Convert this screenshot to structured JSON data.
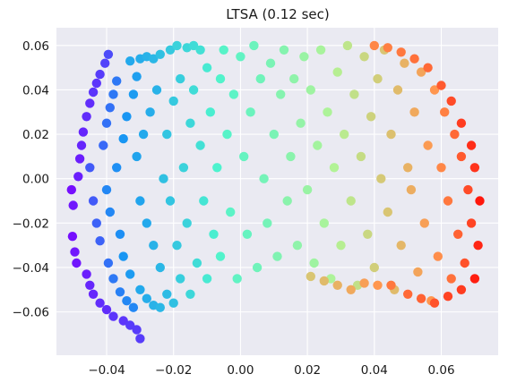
{
  "chart_data": {
    "type": "scatter",
    "title": "LTSA (0.12 sec)",
    "xlabel": "",
    "ylabel": "",
    "xlim": [
      -0.055,
      0.077
    ],
    "ylim": [
      -0.0795,
      0.068
    ],
    "xticks": [
      -0.04,
      -0.02,
      0.0,
      0.02,
      0.04,
      0.06
    ],
    "yticks": [
      -0.06,
      -0.04,
      -0.02,
      0.0,
      0.02,
      0.04,
      0.06
    ],
    "xtick_labels": [
      "−0.04",
      "−0.02",
      "0.00",
      "0.02",
      "0.04",
      "0.06"
    ],
    "ytick_labels": [
      "−0.06",
      "−0.04",
      "−0.02",
      "0.00",
      "0.02",
      "0.04",
      "0.06"
    ],
    "grid": true,
    "background": "#eaeaf2",
    "grid_color": "#ffffff",
    "colormap": "rainbow",
    "color_stops": [
      "#8000ff",
      "#1996f3",
      "#4df3ce",
      "#b2f396",
      "#ff964f",
      "#ff0000"
    ],
    "points": [
      {
        "x": -0.0505,
        "y": -0.005,
        "c": 0.02
      },
      {
        "x": -0.05,
        "y": -0.012,
        "c": 0.03
      },
      {
        "x": -0.0502,
        "y": -0.026,
        "c": 0.02
      },
      {
        "x": -0.0495,
        "y": -0.033,
        "c": 0.03
      },
      {
        "x": -0.049,
        "y": -0.038,
        "c": 0.03
      },
      {
        "x": -0.0485,
        "y": 0.001,
        "c": 0.04
      },
      {
        "x": -0.048,
        "y": 0.009,
        "c": 0.04
      },
      {
        "x": -0.0475,
        "y": 0.015,
        "c": 0.05
      },
      {
        "x": -0.047,
        "y": 0.021,
        "c": 0.05
      },
      {
        "x": -0.046,
        "y": 0.028,
        "c": 0.06
      },
      {
        "x": -0.045,
        "y": 0.034,
        "c": 0.06
      },
      {
        "x": -0.044,
        "y": 0.039,
        "c": 0.07
      },
      {
        "x": -0.043,
        "y": 0.043,
        "c": 0.07
      },
      {
        "x": -0.042,
        "y": 0.047,
        "c": 0.08
      },
      {
        "x": -0.0405,
        "y": 0.052,
        "c": 0.09
      },
      {
        "x": -0.0395,
        "y": 0.056,
        "c": 0.1
      },
      {
        "x": -0.046,
        "y": -0.043,
        "c": 0.04
      },
      {
        "x": -0.045,
        "y": -0.048,
        "c": 0.05
      },
      {
        "x": -0.044,
        "y": -0.052,
        "c": 0.05
      },
      {
        "x": -0.042,
        "y": -0.056,
        "c": 0.06
      },
      {
        "x": -0.04,
        "y": -0.059,
        "c": 0.06
      },
      {
        "x": -0.038,
        "y": -0.062,
        "c": 0.07
      },
      {
        "x": -0.035,
        "y": -0.064,
        "c": 0.07
      },
      {
        "x": -0.033,
        "y": -0.066,
        "c": 0.08
      },
      {
        "x": -0.031,
        "y": -0.068,
        "c": 0.08
      },
      {
        "x": -0.03,
        "y": -0.072,
        "c": 0.08
      },
      {
        "x": -0.045,
        "y": 0.005,
        "c": 0.12
      },
      {
        "x": -0.044,
        "y": -0.01,
        "c": 0.12
      },
      {
        "x": -0.043,
        "y": -0.02,
        "c": 0.13
      },
      {
        "x": -0.042,
        "y": -0.028,
        "c": 0.13
      },
      {
        "x": -0.041,
        "y": 0.015,
        "c": 0.14
      },
      {
        "x": -0.04,
        "y": 0.025,
        "c": 0.15
      },
      {
        "x": -0.039,
        "y": 0.032,
        "c": 0.15
      },
      {
        "x": -0.038,
        "y": 0.038,
        "c": 0.16
      },
      {
        "x": -0.037,
        "y": 0.044,
        "c": 0.16
      },
      {
        "x": -0.0395,
        "y": -0.038,
        "c": 0.15
      },
      {
        "x": -0.038,
        "y": -0.045,
        "c": 0.16
      },
      {
        "x": -0.036,
        "y": -0.051,
        "c": 0.17
      },
      {
        "x": -0.034,
        "y": -0.055,
        "c": 0.18
      },
      {
        "x": -0.032,
        "y": -0.058,
        "c": 0.18
      },
      {
        "x": -0.04,
        "y": -0.005,
        "c": 0.18
      },
      {
        "x": -0.039,
        "y": -0.015,
        "c": 0.18
      },
      {
        "x": -0.037,
        "y": 0.005,
        "c": 0.19
      },
      {
        "x": -0.036,
        "y": -0.025,
        "c": 0.19
      },
      {
        "x": -0.035,
        "y": 0.018,
        "c": 0.2
      },
      {
        "x": -0.034,
        "y": 0.028,
        "c": 0.2
      },
      {
        "x": -0.035,
        "y": -0.035,
        "c": 0.2
      },
      {
        "x": -0.033,
        "y": -0.043,
        "c": 0.21
      },
      {
        "x": -0.032,
        "y": 0.038,
        "c": 0.21
      },
      {
        "x": -0.031,
        "y": 0.046,
        "c": 0.22
      },
      {
        "x": -0.033,
        "y": 0.053,
        "c": 0.24
      },
      {
        "x": -0.03,
        "y": 0.054,
        "c": 0.25
      },
      {
        "x": -0.028,
        "y": 0.055,
        "c": 0.26
      },
      {
        "x": -0.026,
        "y": 0.054,
        "c": 0.27
      },
      {
        "x": -0.024,
        "y": 0.056,
        "c": 0.29
      },
      {
        "x": -0.021,
        "y": 0.058,
        "c": 0.31
      },
      {
        "x": -0.019,
        "y": 0.06,
        "c": 0.33
      },
      {
        "x": -0.016,
        "y": 0.059,
        "c": 0.34
      },
      {
        "x": -0.014,
        "y": 0.06,
        "c": 0.35
      },
      {
        "x": -0.012,
        "y": 0.058,
        "c": 0.36
      },
      {
        "x": -0.031,
        "y": 0.01,
        "c": 0.23
      },
      {
        "x": -0.03,
        "y": -0.01,
        "c": 0.23
      },
      {
        "x": -0.029,
        "y": 0.02,
        "c": 0.24
      },
      {
        "x": -0.028,
        "y": -0.02,
        "c": 0.24
      },
      {
        "x": -0.027,
        "y": 0.03,
        "c": 0.25
      },
      {
        "x": -0.026,
        "y": -0.03,
        "c": 0.26
      },
      {
        "x": -0.025,
        "y": 0.04,
        "c": 0.26
      },
      {
        "x": -0.024,
        "y": -0.04,
        "c": 0.27
      },
      {
        "x": -0.03,
        "y": -0.05,
        "c": 0.24
      },
      {
        "x": -0.028,
        "y": -0.054,
        "c": 0.25
      },
      {
        "x": -0.026,
        "y": -0.057,
        "c": 0.26
      },
      {
        "x": -0.024,
        "y": -0.058,
        "c": 0.27
      },
      {
        "x": -0.022,
        "y": -0.052,
        "c": 0.28
      },
      {
        "x": -0.02,
        "y": -0.056,
        "c": 0.29
      },
      {
        "x": -0.023,
        "y": 0.0,
        "c": 0.29
      },
      {
        "x": -0.022,
        "y": 0.02,
        "c": 0.3
      },
      {
        "x": -0.021,
        "y": -0.01,
        "c": 0.3
      },
      {
        "x": -0.02,
        "y": 0.035,
        "c": 0.31
      },
      {
        "x": -0.019,
        "y": -0.03,
        "c": 0.31
      },
      {
        "x": -0.018,
        "y": 0.045,
        "c": 0.32
      },
      {
        "x": -0.018,
        "y": -0.045,
        "c": 0.32
      },
      {
        "x": -0.017,
        "y": 0.005,
        "c": 0.33
      },
      {
        "x": -0.016,
        "y": -0.02,
        "c": 0.33
      },
      {
        "x": -0.015,
        "y": 0.025,
        "c": 0.34
      },
      {
        "x": -0.015,
        "y": -0.052,
        "c": 0.34
      },
      {
        "x": -0.014,
        "y": 0.04,
        "c": 0.35
      },
      {
        "x": -0.013,
        "y": -0.038,
        "c": 0.35
      },
      {
        "x": -0.012,
        "y": 0.015,
        "c": 0.36
      },
      {
        "x": -0.011,
        "y": -0.01,
        "c": 0.37
      },
      {
        "x": -0.01,
        "y": 0.05,
        "c": 0.38
      },
      {
        "x": -0.01,
        "y": -0.045,
        "c": 0.38
      },
      {
        "x": -0.009,
        "y": 0.03,
        "c": 0.39
      },
      {
        "x": -0.008,
        "y": -0.025,
        "c": 0.39
      },
      {
        "x": -0.007,
        "y": 0.005,
        "c": 0.4
      },
      {
        "x": -0.006,
        "y": 0.045,
        "c": 0.41
      },
      {
        "x": -0.006,
        "y": -0.035,
        "c": 0.41
      },
      {
        "x": -0.005,
        "y": 0.058,
        "c": 0.42
      },
      {
        "x": -0.004,
        "y": 0.02,
        "c": 0.42
      },
      {
        "x": -0.003,
        "y": -0.015,
        "c": 0.43
      },
      {
        "x": -0.002,
        "y": 0.038,
        "c": 0.43
      },
      {
        "x": -0.001,
        "y": -0.045,
        "c": 0.44
      },
      {
        "x": 0.0,
        "y": 0.055,
        "c": 0.44
      },
      {
        "x": 0.001,
        "y": 0.01,
        "c": 0.45
      },
      {
        "x": 0.002,
        "y": -0.025,
        "c": 0.45
      },
      {
        "x": 0.003,
        "y": 0.03,
        "c": 0.46
      },
      {
        "x": 0.004,
        "y": 0.06,
        "c": 0.46
      },
      {
        "x": 0.005,
        "y": -0.04,
        "c": 0.47
      },
      {
        "x": 0.006,
        "y": 0.045,
        "c": 0.47
      },
      {
        "x": 0.007,
        "y": 0.0,
        "c": 0.48
      },
      {
        "x": 0.008,
        "y": -0.02,
        "c": 0.48
      },
      {
        "x": 0.009,
        "y": 0.052,
        "c": 0.49
      },
      {
        "x": 0.01,
        "y": 0.02,
        "c": 0.49
      },
      {
        "x": 0.011,
        "y": -0.035,
        "c": 0.5
      },
      {
        "x": 0.012,
        "y": 0.038,
        "c": 0.51
      },
      {
        "x": 0.013,
        "y": 0.058,
        "c": 0.51
      },
      {
        "x": 0.014,
        "y": -0.01,
        "c": 0.52
      },
      {
        "x": 0.015,
        "y": 0.01,
        "c": 0.52
      },
      {
        "x": 0.016,
        "y": 0.045,
        "c": 0.53
      },
      {
        "x": 0.017,
        "y": -0.03,
        "c": 0.53
      },
      {
        "x": 0.018,
        "y": 0.025,
        "c": 0.54
      },
      {
        "x": 0.019,
        "y": 0.055,
        "c": 0.55
      },
      {
        "x": 0.02,
        "y": -0.005,
        "c": 0.55
      },
      {
        "x": 0.021,
        "y": 0.04,
        "c": 0.56
      },
      {
        "x": 0.022,
        "y": -0.038,
        "c": 0.56
      },
      {
        "x": 0.023,
        "y": 0.015,
        "c": 0.57
      },
      {
        "x": 0.024,
        "y": 0.058,
        "c": 0.58
      },
      {
        "x": 0.025,
        "y": -0.02,
        "c": 0.58
      },
      {
        "x": 0.026,
        "y": 0.03,
        "c": 0.59
      },
      {
        "x": 0.027,
        "y": -0.045,
        "c": 0.59
      },
      {
        "x": 0.028,
        "y": 0.005,
        "c": 0.6
      },
      {
        "x": 0.029,
        "y": 0.048,
        "c": 0.61
      },
      {
        "x": 0.03,
        "y": -0.03,
        "c": 0.61
      },
      {
        "x": 0.031,
        "y": 0.02,
        "c": 0.62
      },
      {
        "x": 0.032,
        "y": 0.06,
        "c": 0.63
      },
      {
        "x": 0.033,
        "y": -0.01,
        "c": 0.63
      },
      {
        "x": 0.034,
        "y": 0.038,
        "c": 0.64
      },
      {
        "x": 0.035,
        "y": -0.048,
        "c": 0.64
      },
      {
        "x": 0.036,
        "y": 0.01,
        "c": 0.65
      },
      {
        "x": 0.037,
        "y": 0.055,
        "c": 0.66
      },
      {
        "x": 0.038,
        "y": -0.025,
        "c": 0.66
      },
      {
        "x": 0.039,
        "y": 0.028,
        "c": 0.67
      },
      {
        "x": 0.04,
        "y": -0.04,
        "c": 0.68
      },
      {
        "x": 0.041,
        "y": 0.045,
        "c": 0.68
      },
      {
        "x": 0.042,
        "y": 0.0,
        "c": 0.69
      },
      {
        "x": 0.043,
        "y": 0.058,
        "c": 0.7
      },
      {
        "x": 0.044,
        "y": -0.015,
        "c": 0.7
      },
      {
        "x": 0.045,
        "y": 0.02,
        "c": 0.71
      },
      {
        "x": 0.046,
        "y": -0.05,
        "c": 0.72
      },
      {
        "x": 0.047,
        "y": 0.04,
        "c": 0.72
      },
      {
        "x": 0.048,
        "y": -0.03,
        "c": 0.73
      },
      {
        "x": 0.049,
        "y": 0.052,
        "c": 0.74
      },
      {
        "x": 0.05,
        "y": 0.005,
        "c": 0.74
      },
      {
        "x": 0.051,
        "y": -0.005,
        "c": 0.75
      },
      {
        "x": 0.052,
        "y": 0.03,
        "c": 0.76
      },
      {
        "x": 0.053,
        "y": -0.042,
        "c": 0.77
      },
      {
        "x": 0.054,
        "y": 0.048,
        "c": 0.77
      },
      {
        "x": 0.055,
        "y": -0.02,
        "c": 0.78
      },
      {
        "x": 0.056,
        "y": 0.015,
        "c": 0.79
      },
      {
        "x": 0.057,
        "y": -0.055,
        "c": 0.8
      },
      {
        "x": 0.058,
        "y": 0.04,
        "c": 0.8
      },
      {
        "x": 0.059,
        "y": -0.035,
        "c": 0.81
      },
      {
        "x": 0.06,
        "y": 0.005,
        "c": 0.82
      },
      {
        "x": 0.061,
        "y": 0.03,
        "c": 0.83
      },
      {
        "x": 0.062,
        "y": -0.01,
        "c": 0.84
      },
      {
        "x": 0.063,
        "y": -0.045,
        "c": 0.85
      },
      {
        "x": 0.064,
        "y": 0.02,
        "c": 0.86
      },
      {
        "x": 0.065,
        "y": -0.025,
        "c": 0.87
      },
      {
        "x": 0.066,
        "y": 0.01,
        "c": 0.88
      },
      {
        "x": 0.067,
        "y": -0.038,
        "c": 0.89
      },
      {
        "x": 0.068,
        "y": -0.005,
        "c": 0.9
      },
      {
        "x": 0.069,
        "y": -0.02,
        "c": 0.91
      },
      {
        "x": 0.07,
        "y": 0.005,
        "c": 0.93
      },
      {
        "x": 0.071,
        "y": -0.03,
        "c": 0.95
      },
      {
        "x": 0.0715,
        "y": -0.01,
        "c": 0.97
      },
      {
        "x": 0.07,
        "y": -0.045,
        "c": 0.96
      },
      {
        "x": 0.069,
        "y": 0.015,
        "c": 0.94
      },
      {
        "x": 0.066,
        "y": 0.025,
        "c": 0.92
      },
      {
        "x": 0.063,
        "y": 0.035,
        "c": 0.9
      },
      {
        "x": 0.06,
        "y": 0.042,
        "c": 0.88
      },
      {
        "x": 0.056,
        "y": 0.05,
        "c": 0.86
      },
      {
        "x": 0.052,
        "y": 0.054,
        "c": 0.85
      },
      {
        "x": 0.048,
        "y": 0.057,
        "c": 0.84
      },
      {
        "x": 0.044,
        "y": 0.059,
        "c": 0.83
      },
      {
        "x": 0.04,
        "y": 0.06,
        "c": 0.82
      },
      {
        "x": 0.066,
        "y": -0.05,
        "c": 0.92
      },
      {
        "x": 0.062,
        "y": -0.053,
        "c": 0.91
      },
      {
        "x": 0.058,
        "y": -0.056,
        "c": 0.89
      },
      {
        "x": 0.054,
        "y": -0.054,
        "c": 0.87
      },
      {
        "x": 0.05,
        "y": -0.052,
        "c": 0.86
      },
      {
        "x": 0.045,
        "y": -0.048,
        "c": 0.84
      },
      {
        "x": 0.041,
        "y": -0.048,
        "c": 0.8
      },
      {
        "x": 0.037,
        "y": -0.047,
        "c": 0.78
      },
      {
        "x": 0.033,
        "y": -0.05,
        "c": 0.76
      },
      {
        "x": 0.029,
        "y": -0.048,
        "c": 0.74
      },
      {
        "x": 0.025,
        "y": -0.046,
        "c": 0.72
      },
      {
        "x": 0.021,
        "y": -0.044,
        "c": 0.7
      }
    ]
  }
}
